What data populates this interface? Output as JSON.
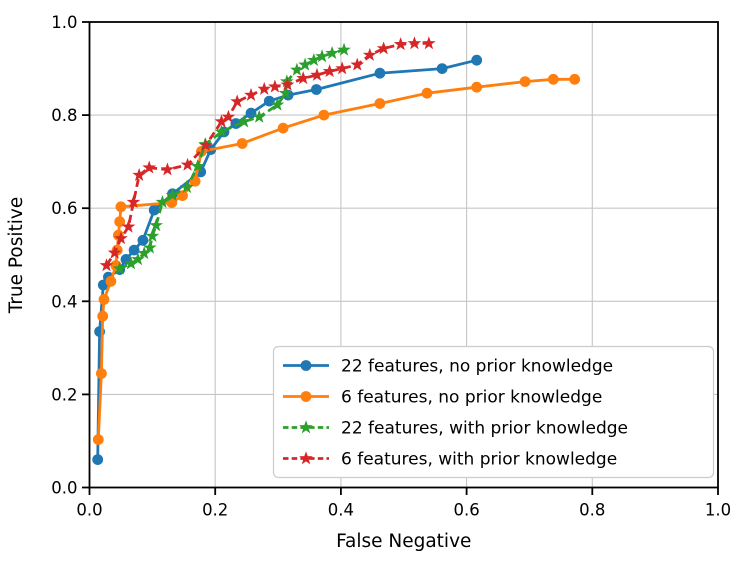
{
  "chart_data": {
    "type": "line",
    "title": "",
    "xlabel": "False Negative",
    "ylabel": "True Positive",
    "xlim": [
      0.0,
      1.0
    ],
    "ylim": [
      0.0,
      1.0
    ],
    "xticks": [
      0.0,
      0.2,
      0.4,
      0.6,
      0.8,
      1.0
    ],
    "yticks": [
      0.0,
      0.2,
      0.4,
      0.6,
      0.8,
      1.0
    ],
    "grid": true,
    "legend_position": "lower right",
    "series": [
      {
        "name": "22 features, no prior knowledge",
        "color": "#1f77b4",
        "linestyle": "solid",
        "marker": "circle",
        "points": [
          [
            0.013,
            0.06
          ],
          [
            0.016,
            0.335
          ],
          [
            0.022,
            0.435
          ],
          [
            0.03,
            0.452
          ],
          [
            0.048,
            0.468
          ],
          [
            0.058,
            0.49
          ],
          [
            0.071,
            0.51
          ],
          [
            0.085,
            0.531
          ],
          [
            0.103,
            0.596
          ],
          [
            0.132,
            0.631
          ],
          [
            0.177,
            0.678
          ],
          [
            0.193,
            0.726
          ],
          [
            0.214,
            0.764
          ],
          [
            0.233,
            0.782
          ],
          [
            0.257,
            0.804
          ],
          [
            0.286,
            0.83
          ],
          [
            0.316,
            0.843
          ],
          [
            0.361,
            0.855
          ],
          [
            0.462,
            0.89
          ],
          [
            0.561,
            0.9
          ],
          [
            0.616,
            0.918
          ]
        ]
      },
      {
        "name": "6 features, no prior knowledge",
        "color": "#ff7f0e",
        "linestyle": "solid",
        "marker": "circle",
        "points": [
          [
            0.014,
            0.103
          ],
          [
            0.019,
            0.245
          ],
          [
            0.021,
            0.368
          ],
          [
            0.023,
            0.404
          ],
          [
            0.034,
            0.443
          ],
          [
            0.042,
            0.477
          ],
          [
            0.044,
            0.51
          ],
          [
            0.046,
            0.542
          ],
          [
            0.048,
            0.571
          ],
          [
            0.05,
            0.603
          ],
          [
            0.131,
            0.612
          ],
          [
            0.148,
            0.627
          ],
          [
            0.168,
            0.658
          ],
          [
            0.178,
            0.722
          ],
          [
            0.243,
            0.739
          ],
          [
            0.308,
            0.772
          ],
          [
            0.373,
            0.8
          ],
          [
            0.462,
            0.825
          ],
          [
            0.537,
            0.847
          ],
          [
            0.616,
            0.86
          ],
          [
            0.693,
            0.872
          ],
          [
            0.738,
            0.877
          ],
          [
            0.772,
            0.877
          ]
        ]
      },
      {
        "name": "22 features, with prior knowledge",
        "color": "#2ca02c",
        "linestyle": "dashed",
        "marker": "star",
        "points": [
          [
            0.048,
            0.47
          ],
          [
            0.066,
            0.481
          ],
          [
            0.077,
            0.49
          ],
          [
            0.087,
            0.503
          ],
          [
            0.096,
            0.515
          ],
          [
            0.1,
            0.54
          ],
          [
            0.106,
            0.563
          ],
          [
            0.116,
            0.613
          ],
          [
            0.132,
            0.628
          ],
          [
            0.155,
            0.645
          ],
          [
            0.172,
            0.69
          ],
          [
            0.184,
            0.737
          ],
          [
            0.21,
            0.764
          ],
          [
            0.246,
            0.786
          ],
          [
            0.27,
            0.796
          ],
          [
            0.299,
            0.822
          ],
          [
            0.312,
            0.847
          ],
          [
            0.314,
            0.872
          ],
          [
            0.33,
            0.897
          ],
          [
            0.343,
            0.908
          ],
          [
            0.357,
            0.918
          ],
          [
            0.37,
            0.926
          ],
          [
            0.386,
            0.933
          ],
          [
            0.405,
            0.94
          ]
        ]
      },
      {
        "name": "6 features, with prior knowledge",
        "color": "#d62728",
        "linestyle": "dashed",
        "marker": "star",
        "points": [
          [
            0.027,
            0.477
          ],
          [
            0.04,
            0.504
          ],
          [
            0.05,
            0.535
          ],
          [
            0.062,
            0.56
          ],
          [
            0.07,
            0.613
          ],
          [
            0.079,
            0.671
          ],
          [
            0.095,
            0.687
          ],
          [
            0.124,
            0.683
          ],
          [
            0.156,
            0.693
          ],
          [
            0.185,
            0.735
          ],
          [
            0.21,
            0.786
          ],
          [
            0.221,
            0.796
          ],
          [
            0.235,
            0.829
          ],
          [
            0.257,
            0.843
          ],
          [
            0.278,
            0.856
          ],
          [
            0.295,
            0.861
          ],
          [
            0.315,
            0.865
          ],
          [
            0.34,
            0.879
          ],
          [
            0.362,
            0.886
          ],
          [
            0.382,
            0.894
          ],
          [
            0.402,
            0.9
          ],
          [
            0.426,
            0.908
          ],
          [
            0.446,
            0.929
          ],
          [
            0.468,
            0.943
          ],
          [
            0.495,
            0.952
          ],
          [
            0.517,
            0.954
          ],
          [
            0.54,
            0.954
          ]
        ]
      }
    ],
    "colors": {
      "grid": "#c6c6c6",
      "spine": "#000000",
      "text": "#000000",
      "legend_border": "#cccccc",
      "legend_bg": "#ffffff"
    }
  }
}
